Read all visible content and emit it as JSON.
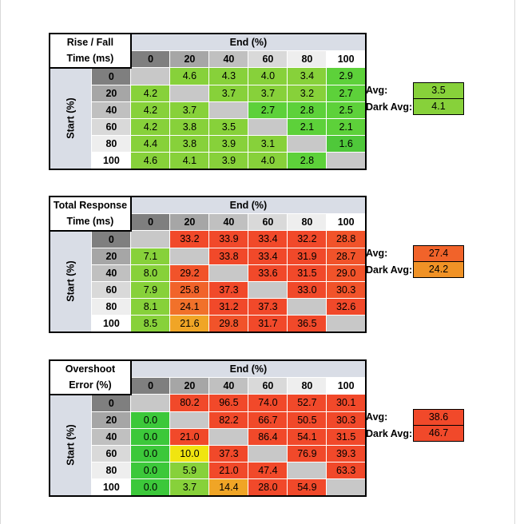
{
  "chart_data": [
    {
      "type": "heatmap",
      "title": "Rise / Fall Time (ms)",
      "title_lines": [
        "Rise / Fall",
        "Time (ms)"
      ],
      "xlabel": "End (%)",
      "ylabel": "Start (%)",
      "x": [
        "0",
        "20",
        "40",
        "60",
        "80",
        "100"
      ],
      "y": [
        "0",
        "20",
        "40",
        "60",
        "80",
        "100"
      ],
      "values": [
        [
          null,
          "4.6",
          "4.3",
          "4.0",
          "3.4",
          "2.9"
        ],
        [
          "4.2",
          null,
          "3.7",
          "3.7",
          "3.2",
          "2.7"
        ],
        [
          "4.2",
          "3.7",
          null,
          "2.7",
          "2.8",
          "2.5"
        ],
        [
          "4.2",
          "3.8",
          "3.5",
          null,
          "2.1",
          "2.1"
        ],
        [
          "4.4",
          "3.8",
          "3.9",
          "3.1",
          null,
          "1.6"
        ],
        [
          "4.6",
          "4.1",
          "3.9",
          "4.0",
          "2.8",
          null
        ]
      ],
      "colors": [
        [
          "#c8c8c8",
          "#87d13a",
          "#87d13a",
          "#87d13a",
          "#87d13a",
          "#5dd13a"
        ],
        [
          "#87d13a",
          "#c8c8c8",
          "#87d13a",
          "#87d13a",
          "#87d13a",
          "#5dd13a"
        ],
        [
          "#87d13a",
          "#87d13a",
          "#c8c8c8",
          "#5dd13a",
          "#5dd13a",
          "#5dd13a"
        ],
        [
          "#87d13a",
          "#87d13a",
          "#87d13a",
          "#c8c8c8",
          "#5dd13a",
          "#5dd13a"
        ],
        [
          "#87d13a",
          "#87d13a",
          "#87d13a",
          "#87d13a",
          "#c8c8c8",
          "#4fc83a"
        ],
        [
          "#87d13a",
          "#87d13a",
          "#87d13a",
          "#87d13a",
          "#5dd13a",
          "#c8c8c8"
        ]
      ],
      "avg": {
        "label": "Avg:",
        "value": "3.5",
        "color": "#87d13a"
      },
      "dark_avg": {
        "label": "Dark Avg:",
        "value": "4.1",
        "color": "#87d13a"
      }
    },
    {
      "type": "heatmap",
      "title": "Total Response Time (ms)",
      "title_lines": [
        "Total Response",
        "Time (ms)"
      ],
      "xlabel": "End (%)",
      "ylabel": "Start (%)",
      "x": [
        "0",
        "20",
        "40",
        "60",
        "80",
        "100"
      ],
      "y": [
        "0",
        "20",
        "40",
        "60",
        "80",
        "100"
      ],
      "values": [
        [
          null,
          "33.2",
          "33.9",
          "33.4",
          "32.2",
          "28.8"
        ],
        [
          "7.1",
          null,
          "33.8",
          "33.4",
          "31.9",
          "28.7"
        ],
        [
          "8.0",
          "29.2",
          null,
          "33.6",
          "31.5",
          "29.0"
        ],
        [
          "7.9",
          "25.8",
          "37.3",
          null,
          "33.0",
          "30.3"
        ],
        [
          "8.1",
          "24.1",
          "31.2",
          "37.3",
          null,
          "32.6"
        ],
        [
          "8.5",
          "21.6",
          "29.8",
          "31.7",
          "36.5",
          null
        ]
      ],
      "colors": [
        [
          "#c8c8c8",
          "#f1492a",
          "#f1492a",
          "#f1492a",
          "#f1492a",
          "#f1532a"
        ],
        [
          "#87d13a",
          "#c8c8c8",
          "#f1492a",
          "#f1492a",
          "#f1492a",
          "#f1532a"
        ],
        [
          "#87d13a",
          "#f1532a",
          "#c8c8c8",
          "#f1492a",
          "#f1492a",
          "#f1532a"
        ],
        [
          "#87d13a",
          "#f1632a",
          "#f1492a",
          "#c8c8c8",
          "#f1492a",
          "#f1532a"
        ],
        [
          "#87d13a",
          "#f1712a",
          "#f1492a",
          "#f1492a",
          "#c8c8c8",
          "#f1492a"
        ],
        [
          "#87d13a",
          "#f0a526",
          "#f1532a",
          "#f1492a",
          "#f1492a",
          "#c8c8c8"
        ]
      ],
      "avg": {
        "label": "Avg:",
        "value": "27.4",
        "color": "#f1632a"
      },
      "dark_avg": {
        "label": "Dark Avg:",
        "value": "24.2",
        "color": "#f09226"
      }
    },
    {
      "type": "heatmap",
      "title": "Overshoot Error (%)",
      "title_lines": [
        "Overshoot",
        "Error (%)"
      ],
      "xlabel": "End (%)",
      "ylabel": "Start (%)",
      "x": [
        "0",
        "20",
        "40",
        "60",
        "80",
        "100"
      ],
      "y": [
        "0",
        "20",
        "40",
        "60",
        "80",
        "100"
      ],
      "values": [
        [
          null,
          "80.2",
          "96.5",
          "74.0",
          "52.7",
          "30.1"
        ],
        [
          "0.0",
          null,
          "82.2",
          "66.7",
          "50.5",
          "30.3"
        ],
        [
          "0.0",
          "21.0",
          null,
          "86.4",
          "54.1",
          "31.5"
        ],
        [
          "0.0",
          "10.0",
          "37.3",
          null,
          "76.9",
          "39.3"
        ],
        [
          "0.0",
          "5.9",
          "21.0",
          "47.4",
          null,
          "63.3"
        ],
        [
          "0.0",
          "3.7",
          "14.4",
          "28.0",
          "54.9",
          null
        ]
      ],
      "colors": [
        [
          "#c8c8c8",
          "#f1492a",
          "#f1492a",
          "#f1492a",
          "#f1492a",
          "#f1492a"
        ],
        [
          "#3cc83a",
          "#c8c8c8",
          "#f1492a",
          "#f1492a",
          "#f1492a",
          "#f1492a"
        ],
        [
          "#3cc83a",
          "#f1492a",
          "#c8c8c8",
          "#f1492a",
          "#f1492a",
          "#f1492a"
        ],
        [
          "#3cc83a",
          "#f0e510",
          "#f1492a",
          "#c8c8c8",
          "#f1492a",
          "#f1492a"
        ],
        [
          "#3cc83a",
          "#87d13a",
          "#f1492a",
          "#f1492a",
          "#c8c8c8",
          "#f1492a"
        ],
        [
          "#3cc83a",
          "#87d13a",
          "#f0a526",
          "#f1492a",
          "#f1492a",
          "#c8c8c8"
        ]
      ],
      "avg": {
        "label": "Avg:",
        "value": "38.6",
        "color": "#f1492a"
      },
      "dark_avg": {
        "label": "Dark Avg:",
        "value": "46.7",
        "color": "#f1492a"
      }
    }
  ],
  "theme": {
    "header_bg": "#d9dde6",
    "row_shades": [
      "#7f7f7f",
      "#a6a6a6",
      "#c0c0c0",
      "#d9d9d9",
      "#eeeeee",
      "#ffffff"
    ],
    "empty_cell": "#c8c8c8"
  }
}
